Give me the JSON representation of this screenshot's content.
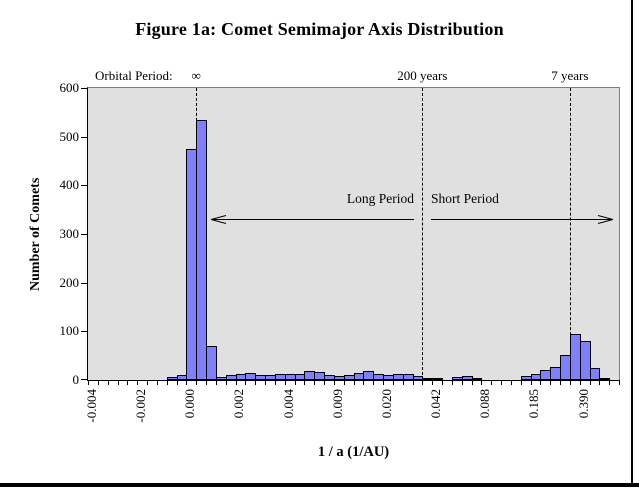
{
  "figure": {
    "title": "Figure 1a:  Comet Semimajor Axis Distribution"
  },
  "colors": {
    "bar_fill": "#8080FF",
    "bar_border": "#000000",
    "plot_background": "#E0E0E0",
    "plot_border": "#808080",
    "text": "#000000"
  },
  "chart_data": {
    "type": "bar",
    "title": "Figure 1a:  Comet Semimajor Axis Distribution",
    "xlabel": "1 / a  (1/AU)",
    "ylabel": "Number of Comets",
    "ylim": [
      0,
      600
    ],
    "y_ticks": [
      0,
      100,
      200,
      300,
      400,
      500,
      600
    ],
    "grid": false,
    "legend": "none",
    "n_bins": 54,
    "bin_values": [
      0,
      0,
      0,
      0,
      0,
      0,
      0,
      0,
      6,
      10,
      475,
      535,
      70,
      6,
      10,
      13,
      15,
      10,
      11,
      12,
      12,
      12,
      18,
      16,
      10,
      9,
      10,
      15,
      18,
      12,
      10,
      12,
      12,
      8,
      4,
      5,
      0,
      6,
      8,
      5,
      0,
      0,
      0,
      0,
      8,
      13,
      20,
      26,
      52,
      95,
      80,
      25,
      3,
      0
    ],
    "x_tick_labels": [
      "-0.004",
      "-0.002",
      "0.000",
      "0.002",
      "0.004",
      "0.009",
      "0.020",
      "0.042",
      "0.088",
      "0.185",
      "0.390"
    ],
    "x_tick_label_bins": [
      0,
      5,
      10,
      15,
      20,
      25,
      30,
      35,
      40,
      45,
      50
    ],
    "x_label_every_n_bins": 5,
    "annotations": {
      "orbital_period_label": "Orbital Period:",
      "lines": [
        {
          "name": "infinity",
          "label": "∞",
          "bin": 11
        },
        {
          "name": "200-years",
          "label": "200 years",
          "bin": 34
        },
        {
          "name": "7-years",
          "label": "7 years",
          "bin": 49
        }
      ],
      "regions": [
        {
          "label": "Long Period",
          "arrow_direction": "left"
        },
        {
          "label": "Short Period",
          "arrow_direction": "right"
        }
      ]
    }
  }
}
